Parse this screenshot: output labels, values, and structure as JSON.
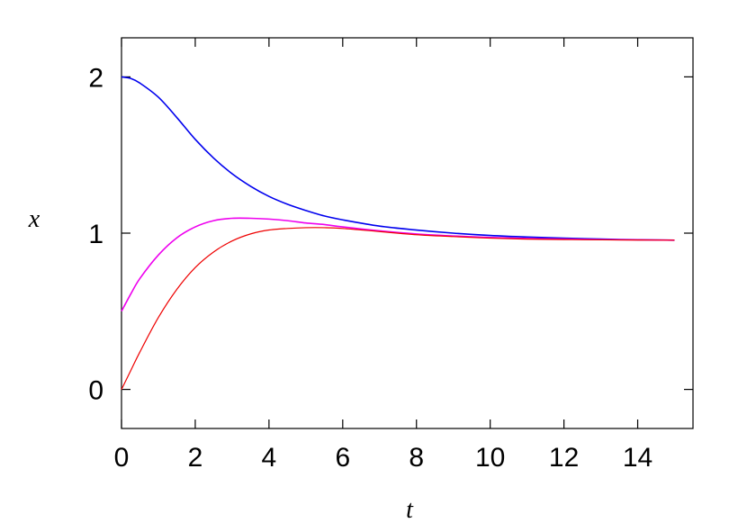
{
  "chart_data": {
    "type": "line",
    "title": "",
    "xlabel": "t",
    "ylabel": "x",
    "xlim": [
      0,
      15.5
    ],
    "ylim": [
      -0.25,
      2.25
    ],
    "xticks": [
      0,
      2,
      4,
      6,
      8,
      10,
      12,
      14
    ],
    "yticks": [
      0,
      1,
      2
    ],
    "xtick_labels": [
      "0",
      "2",
      "4",
      "6",
      "8",
      "10",
      "12",
      14
    ],
    "ytick_labels": [
      "0",
      "1",
      "2"
    ],
    "grid": false,
    "legend": "none",
    "series": [
      {
        "color": "#0000ee",
        "x": [
          0,
          0.25,
          0.5,
          1,
          1.5,
          2,
          2.5,
          3,
          3.5,
          4,
          4.5,
          5,
          5.5,
          6,
          7,
          8,
          9,
          10,
          11,
          12,
          13,
          14,
          15
        ],
        "y": [
          2.0,
          1.99,
          1.96,
          1.87,
          1.74,
          1.6,
          1.48,
          1.38,
          1.3,
          1.235,
          1.185,
          1.145,
          1.11,
          1.085,
          1.045,
          1.02,
          1.0,
          0.985,
          0.975,
          0.968,
          0.962,
          0.958,
          0.955
        ]
      },
      {
        "color": "#ee00ee",
        "x": [
          0,
          0.25,
          0.5,
          1,
          1.5,
          2,
          2.5,
          3,
          3.5,
          4,
          4.5,
          5,
          5.5,
          6,
          7,
          8,
          9,
          10,
          11,
          12,
          13,
          14,
          15
        ],
        "y": [
          0.5,
          0.61,
          0.71,
          0.86,
          0.97,
          1.04,
          1.08,
          1.095,
          1.095,
          1.09,
          1.08,
          1.065,
          1.055,
          1.04,
          1.015,
          0.995,
          0.982,
          0.972,
          0.966,
          0.962,
          0.959,
          0.957,
          0.955
        ]
      },
      {
        "color": "#ee0000",
        "x": [
          0,
          0.25,
          0.5,
          1,
          1.5,
          2,
          2.5,
          3,
          3.5,
          4,
          4.5,
          5,
          5.5,
          6,
          7,
          8,
          9,
          10,
          11,
          12,
          13,
          14,
          15
        ],
        "y": [
          0.0,
          0.12,
          0.24,
          0.46,
          0.64,
          0.78,
          0.88,
          0.95,
          0.995,
          1.02,
          1.03,
          1.035,
          1.035,
          1.03,
          1.01,
          0.99,
          0.978,
          0.968,
          0.962,
          0.959,
          0.957,
          0.956,
          0.955
        ]
      }
    ]
  }
}
